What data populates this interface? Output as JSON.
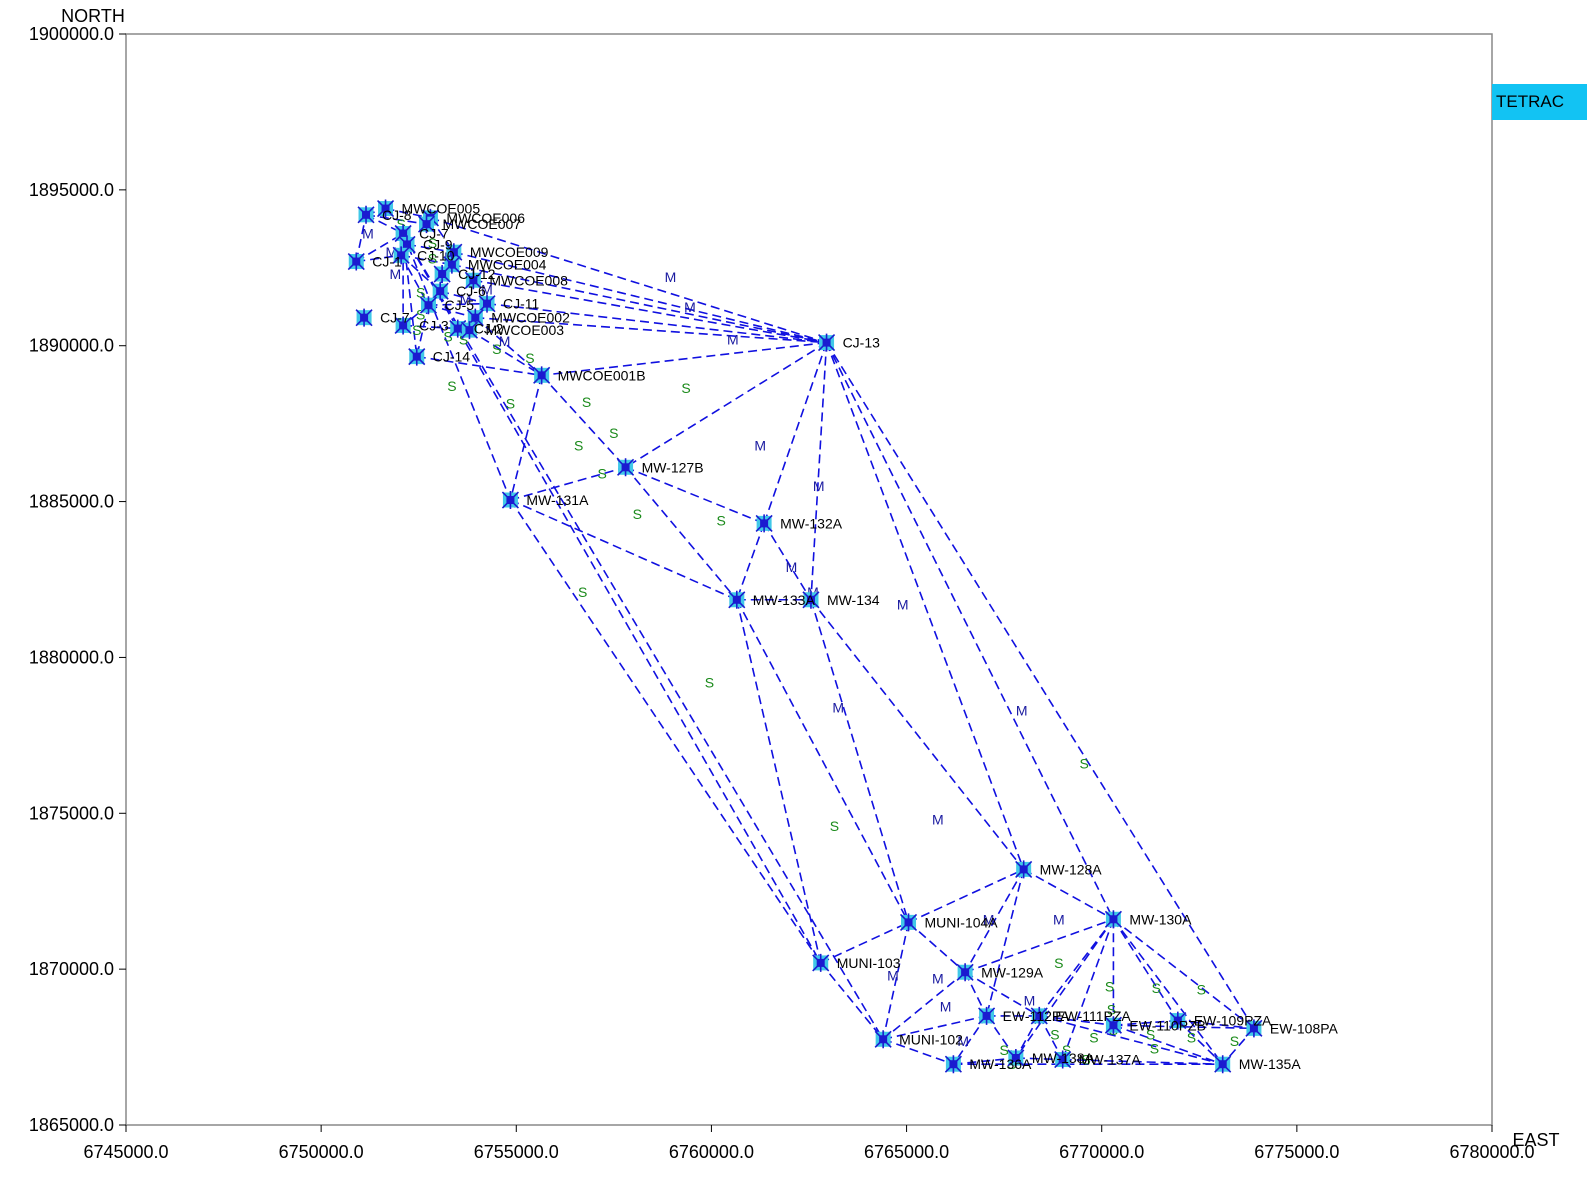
{
  "legend": {
    "label": "TETRAC",
    "color": "#12c3f3"
  },
  "chart_data": {
    "type": "scatter",
    "xlabel": "EAST",
    "ylabel": "NORTH",
    "xlim": [
      6745000,
      6780000
    ],
    "ylim": [
      1865000,
      1900000
    ],
    "x_ticks": [
      "6745000.0",
      "6750000.0",
      "6755000.0",
      "6760000.0",
      "6765000.0",
      "6770000.0",
      "6775000.0",
      "6780000.0"
    ],
    "y_ticks": [
      "1865000.0",
      "1870000.0",
      "1875000.0",
      "1880000.0",
      "1885000.0",
      "1890000.0",
      "1895000.0",
      "1900000.0"
    ],
    "colors": {
      "edge": "#1010e0",
      "marker": "#1b1bd0",
      "marker_halo": "#40c8e8",
      "mark_M": "#1a1aa0",
      "mark_S": "#1a8a1a"
    },
    "points": [
      {
        "name": "MWCOE005",
        "x": 6751650,
        "y": 1894400
      },
      {
        "name": "CJ-8",
        "x": 6751150,
        "y": 1894200
      },
      {
        "name": "MWCOE006",
        "x": 6752800,
        "y": 1894100
      },
      {
        "name": "MWCOE007",
        "x": 6752700,
        "y": 1893900
      },
      {
        "name": "CJ-7",
        "x": 6752100,
        "y": 1893600
      },
      {
        "name": "CJ-9",
        "x": 6752200,
        "y": 1893250
      },
      {
        "name": "MWCOE009",
        "x": 6753400,
        "y": 1893000
      },
      {
        "name": "CJ-1",
        "x": 6750900,
        "y": 1892700
      },
      {
        "name": "CJ-10",
        "x": 6752050,
        "y": 1892900
      },
      {
        "name": "MWCOE004",
        "x": 6753350,
        "y": 1892600
      },
      {
        "name": "CJ-12",
        "x": 6753100,
        "y": 1892300
      },
      {
        "name": "MWCOE008",
        "x": 6753900,
        "y": 1892100
      },
      {
        "name": "CJ-6",
        "x": 6753050,
        "y": 1891750
      },
      {
        "name": "CJ-11",
        "x": 6754250,
        "y": 1891350
      },
      {
        "name": "CJ-5",
        "x": 6752750,
        "y": 1891300
      },
      {
        "name": "CJ-7",
        "x": 6751100,
        "y": 1890900
      },
      {
        "name": "MWCOE002",
        "x": 6753950,
        "y": 1890900
      },
      {
        "name": "CJ-3",
        "x": 6752100,
        "y": 1890650
      },
      {
        "name": "CJ-2",
        "x": 6753500,
        "y": 1890550
      },
      {
        "name": "MWCOE003",
        "x": 6753800,
        "y": 1890500
      },
      {
        "name": "CJ-13",
        "x": 6762950,
        "y": 1890100
      },
      {
        "name": "CJ-14",
        "x": 6752450,
        "y": 1889650
      },
      {
        "name": "MWCOE001B",
        "x": 6755650,
        "y": 1889050
      },
      {
        "name": "MW-127B",
        "x": 6757800,
        "y": 1886100
      },
      {
        "name": "MW-131A",
        "x": 6754850,
        "y": 1885050
      },
      {
        "name": "MW-132A",
        "x": 6761350,
        "y": 1884300
      },
      {
        "name": "MW-133A",
        "x": 6760650,
        "y": 1881850
      },
      {
        "name": "MW-134",
        "x": 6762550,
        "y": 1881850
      },
      {
        "name": "MW-128A",
        "x": 6768000,
        "y": 1873200
      },
      {
        "name": "MUNI-104A",
        "x": 6765050,
        "y": 1871500
      },
      {
        "name": "MW-130A",
        "x": 6770300,
        "y": 1871600
      },
      {
        "name": "MUNI-103",
        "x": 6762800,
        "y": 1870200
      },
      {
        "name": "MW-129A",
        "x": 6766500,
        "y": 1869900
      },
      {
        "name": "EW-112PA",
        "x": 6767050,
        "y": 1868500
      },
      {
        "name": "EW-111PZA",
        "x": 6768400,
        "y": 1868500
      },
      {
        "name": "EW-109PZA",
        "x": 6771950,
        "y": 1868350
      },
      {
        "name": "EW-110PZB",
        "x": 6770300,
        "y": 1868200
      },
      {
        "name": "EW-108PA",
        "x": 6773900,
        "y": 1868100
      },
      {
        "name": "MUNI-102",
        "x": 6764400,
        "y": 1867750
      },
      {
        "name": "MW-138A",
        "x": 6767800,
        "y": 1867150
      },
      {
        "name": "MW-137A",
        "x": 6769000,
        "y": 1867100
      },
      {
        "name": "MW-135A",
        "x": 6773100,
        "y": 1866950
      },
      {
        "name": "MW-136A",
        "x": 6766200,
        "y": 1866950
      }
    ],
    "edges": [
      [
        "CJ-1",
        "CJ-8"
      ],
      [
        "CJ-1",
        "CJ-10"
      ],
      [
        "CJ-1",
        "CJ-7"
      ],
      [
        "CJ-8",
        "MWCOE005"
      ],
      [
        "MWCOE005",
        "MWCOE006"
      ],
      [
        "CJ-8",
        "CJ-7"
      ],
      [
        "CJ-8",
        "MWCOE007"
      ],
      [
        "MWCOE006",
        "MWCOE009"
      ],
      [
        "MWCOE006",
        "CJ-13"
      ],
      [
        "MWCOE009",
        "CJ-13"
      ],
      [
        "MWCOE004",
        "CJ-13"
      ],
      [
        "MWCOE008",
        "CJ-13"
      ],
      [
        "CJ-11",
        "CJ-13"
      ],
      [
        "MWCOE002",
        "CJ-13"
      ],
      [
        "CJ-13",
        "MWCOE001B"
      ],
      [
        "CJ-13",
        "MW-127B"
      ],
      [
        "CJ-13",
        "MW-132A"
      ],
      [
        "CJ-13",
        "MW-134"
      ],
      [
        "CJ-13",
        "MW-128A"
      ],
      [
        "CJ-13",
        "MW-130A"
      ],
      [
        "CJ-13",
        "EW-108PA"
      ],
      [
        "CJ-10",
        "CJ-6"
      ],
      [
        "CJ-10",
        "CJ-5"
      ],
      [
        "CJ-10",
        "MWCOE004"
      ],
      [
        "CJ-9",
        "MWCOE009"
      ],
      [
        "CJ-12",
        "CJ-6"
      ],
      [
        "CJ-6",
        "CJ-11"
      ],
      [
        "CJ-5",
        "CJ-11"
      ],
      [
        "CJ-5",
        "MWCOE002"
      ],
      [
        "CJ-5",
        "CJ-14"
      ],
      [
        "CJ-5",
        "CJ-3"
      ],
      [
        "CJ-7",
        "CJ-3"
      ],
      [
        "CJ-7",
        "CJ-14"
      ],
      [
        "CJ-3",
        "CJ-2"
      ],
      [
        "CJ-2",
        "MWCOE002"
      ],
      [
        "CJ-14",
        "MWCOE001B"
      ],
      [
        "MWCOE002",
        "MWCOE001B"
      ],
      [
        "MWCOE003",
        "MWCOE001B"
      ],
      [
        "MWCOE001B",
        "MW-131A"
      ],
      [
        "MWCOE001B",
        "MW-127B"
      ],
      [
        "CJ-7",
        "MW-131A"
      ],
      [
        "CJ-7",
        "MUNI-103"
      ],
      [
        "CJ-7",
        "MUNI-102"
      ],
      [
        "MW-131A",
        "MW-127B"
      ],
      [
        "MW-131A",
        "MW-133A"
      ],
      [
        "MW-131A",
        "MUNI-103"
      ],
      [
        "MW-127B",
        "MW-132A"
      ],
      [
        "MW-127B",
        "MW-133A"
      ],
      [
        "MW-132A",
        "MW-133A"
      ],
      [
        "MW-132A",
        "MW-134"
      ],
      [
        "MW-133A",
        "MW-134"
      ],
      [
        "MW-133A",
        "MUNI-103"
      ],
      [
        "MW-133A",
        "MUNI-104A"
      ],
      [
        "MW-134",
        "MUNI-104A"
      ],
      [
        "MW-134",
        "MW-128A"
      ],
      [
        "MUNI-103",
        "MUNI-104A"
      ],
      [
        "MUNI-103",
        "MUNI-102"
      ],
      [
        "MUNI-104A",
        "MW-128A"
      ],
      [
        "MUNI-104A",
        "MW-129A"
      ],
      [
        "MUNI-104A",
        "MUNI-102"
      ],
      [
        "MW-128A",
        "MW-129A"
      ],
      [
        "MW-128A",
        "MW-130A"
      ],
      [
        "MW-128A",
        "EW-112PA"
      ],
      [
        "MW-129A",
        "MW-130A"
      ],
      [
        "MW-129A",
        "MUNI-102"
      ],
      [
        "MW-129A",
        "EW-112PA"
      ],
      [
        "MW-129A",
        "EW-111PZA"
      ],
      [
        "MW-130A",
        "EW-111PZA"
      ],
      [
        "MW-130A",
        "EW-110PZB"
      ],
      [
        "MW-130A",
        "EW-109PZA"
      ],
      [
        "MW-130A",
        "EW-108PA"
      ],
      [
        "MW-130A",
        "MW-135A"
      ],
      [
        "MW-130A",
        "MW-137A"
      ],
      [
        "MW-130A",
        "MW-138A"
      ],
      [
        "MUNI-102",
        "EW-112PA"
      ],
      [
        "MUNI-102",
        "MW-136A"
      ],
      [
        "EW-112PA",
        "EW-111PZA"
      ],
      [
        "EW-112PA",
        "MW-136A"
      ],
      [
        "EW-112PA",
        "MW-138A"
      ],
      [
        "EW-111PZA",
        "EW-110PZB"
      ],
      [
        "EW-111PZA",
        "MW-138A"
      ],
      [
        "EW-111PZA",
        "MW-137A"
      ],
      [
        "EW-110PZB",
        "EW-109PZA"
      ],
      [
        "EW-110PZB",
        "EW-108PA"
      ],
      [
        "EW-109PZA",
        "EW-108PA"
      ],
      [
        "EW-109PZA",
        "MW-135A"
      ],
      [
        "EW-108PA",
        "MW-135A"
      ],
      [
        "MW-136A",
        "MW-138A"
      ],
      [
        "MW-136A",
        "MW-135A"
      ],
      [
        "MW-137A",
        "MW-135A"
      ],
      [
        "EW-110PZB",
        "MW-135A"
      ],
      [
        "MW-138A",
        "MW-137A"
      ],
      [
        "EW-111PZA",
        "MW-135A"
      ]
    ],
    "edge_marks": [
      {
        "t": "M",
        "x": 6758950,
        "y": 1892200
      },
      {
        "t": "M",
        "x": 6759450,
        "y": 1891250
      },
      {
        "t": "M",
        "x": 6760550,
        "y": 1890200
      },
      {
        "t": "M",
        "x": 6761250,
        "y": 1886800
      },
      {
        "t": "M",
        "x": 6762750,
        "y": 1885500
      },
      {
        "t": "M",
        "x": 6762050,
        "y": 1882900
      },
      {
        "t": "M",
        "x": 6762600,
        "y": 1882100
      },
      {
        "t": "M",
        "x": 6764900,
        "y": 1881700
      },
      {
        "t": "M",
        "x": 6763250,
        "y": 1878400
      },
      {
        "t": "M",
        "x": 6767950,
        "y": 1878300
      },
      {
        "t": "M",
        "x": 6765800,
        "y": 1874800
      },
      {
        "t": "M",
        "x": 6767100,
        "y": 1871600
      },
      {
        "t": "M",
        "x": 6768900,
        "y": 1871600
      },
      {
        "t": "M",
        "x": 6765800,
        "y": 1869700
      },
      {
        "t": "M",
        "x": 6764650,
        "y": 1869800
      },
      {
        "t": "M",
        "x": 6766000,
        "y": 1868800
      },
      {
        "t": "M",
        "x": 6768150,
        "y": 1869000
      },
      {
        "t": "M",
        "x": 6766450,
        "y": 1867700
      },
      {
        "t": "M",
        "x": 6751200,
        "y": 1893600
      },
      {
        "t": "M",
        "x": 6751900,
        "y": 1892300
      },
      {
        "t": "M",
        "x": 6751800,
        "y": 1893000
      },
      {
        "t": "M",
        "x": 6753300,
        "y": 1892850
      },
      {
        "t": "M",
        "x": 6754250,
        "y": 1891800
      },
      {
        "t": "M",
        "x": 6753700,
        "y": 1891500
      },
      {
        "t": "M",
        "x": 6754700,
        "y": 1890150
      },
      {
        "t": "S",
        "x": 6752050,
        "y": 1893900
      },
      {
        "t": "S",
        "x": 6752150,
        "y": 1893600
      },
      {
        "t": "S",
        "x": 6752850,
        "y": 1893300
      },
      {
        "t": "S",
        "x": 6752850,
        "y": 1892800
      },
      {
        "t": "S",
        "x": 6752550,
        "y": 1891700
      },
      {
        "t": "S",
        "x": 6752550,
        "y": 1891000
      },
      {
        "t": "S",
        "x": 6752450,
        "y": 1890500
      },
      {
        "t": "S",
        "x": 6753250,
        "y": 1890300
      },
      {
        "t": "S",
        "x": 6753650,
        "y": 1890200
      },
      {
        "t": "S",
        "x": 6754500,
        "y": 1889900
      },
      {
        "t": "S",
        "x": 6755350,
        "y": 1889600
      },
      {
        "t": "S",
        "x": 6753350,
        "y": 1888700
      },
      {
        "t": "S",
        "x": 6754850,
        "y": 1888150
      },
      {
        "t": "S",
        "x": 6756800,
        "y": 1888200
      },
      {
        "t": "S",
        "x": 6759350,
        "y": 1888650
      },
      {
        "t": "S",
        "x": 6756600,
        "y": 1886800
      },
      {
        "t": "S",
        "x": 6757500,
        "y": 1887200
      },
      {
        "t": "S",
        "x": 6757200,
        "y": 1885900
      },
      {
        "t": "S",
        "x": 6758100,
        "y": 1884600
      },
      {
        "t": "S",
        "x": 6760250,
        "y": 1884400
      },
      {
        "t": "S",
        "x": 6756700,
        "y": 1882100
      },
      {
        "t": "S",
        "x": 6759950,
        "y": 1879200
      },
      {
        "t": "S",
        "x": 6763150,
        "y": 1874600
      },
      {
        "t": "S",
        "x": 6769550,
        "y": 1876600
      },
      {
        "t": "S",
        "x": 6768900,
        "y": 1870200
      },
      {
        "t": "S",
        "x": 6770200,
        "y": 1869450
      },
      {
        "t": "S",
        "x": 6771400,
        "y": 1869400
      },
      {
        "t": "S",
        "x": 6772550,
        "y": 1869350
      },
      {
        "t": "S",
        "x": 6770250,
        "y": 1868700
      },
      {
        "t": "S",
        "x": 6768800,
        "y": 1867900
      },
      {
        "t": "S",
        "x": 6769800,
        "y": 1867800
      },
      {
        "t": "S",
        "x": 6771250,
        "y": 1867900
      },
      {
        "t": "S",
        "x": 6772300,
        "y": 1867800
      },
      {
        "t": "S",
        "x": 6773400,
        "y": 1867700
      },
      {
        "t": "S",
        "x": 6767500,
        "y": 1867400
      },
      {
        "t": "S",
        "x": 6769100,
        "y": 1867400
      },
      {
        "t": "S",
        "x": 6771350,
        "y": 1867450
      },
      {
        "t": "S",
        "x": 6769600,
        "y": 1867100
      },
      {
        "t": "S",
        "x": 6767700,
        "y": 1866950
      },
      {
        "t": "S",
        "x": 6770300,
        "y": 1868050
      }
    ]
  }
}
